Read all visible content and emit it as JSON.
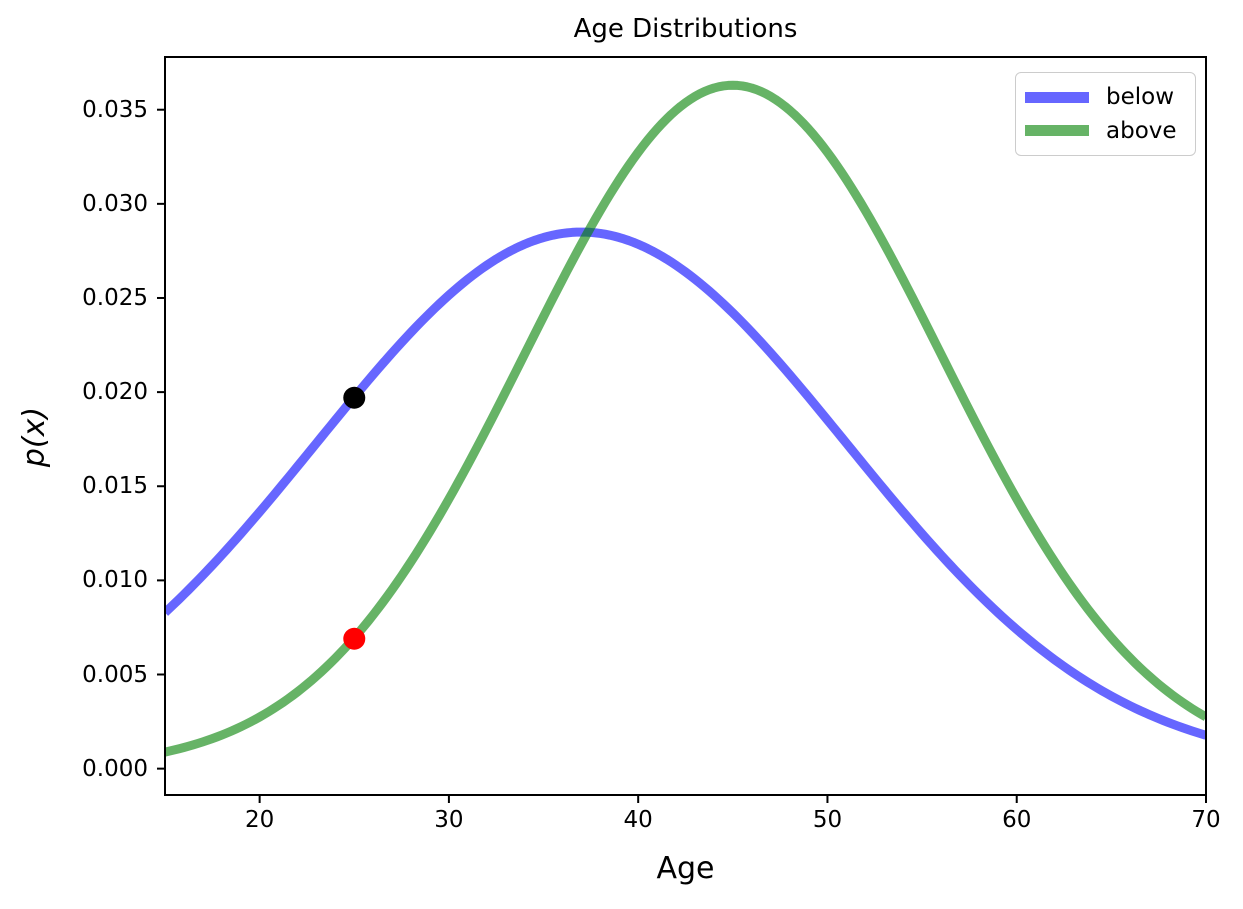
{
  "chart_data": {
    "type": "line",
    "title": "Age Distributions",
    "xlabel": "Age",
    "ylabel": "p(x)",
    "xlim": [
      15,
      70
    ],
    "ylim": [
      -0.0014,
      0.0378
    ],
    "grid": false,
    "legend_position": "upper right",
    "x_ticks": {
      "values": [
        20,
        30,
        40,
        50,
        60,
        70
      ],
      "labels": [
        "20",
        "30",
        "40",
        "50",
        "60",
        "70"
      ]
    },
    "y_ticks": {
      "values": [
        0.0,
        0.005,
        0.01,
        0.015,
        0.02,
        0.025,
        0.03,
        0.035
      ],
      "labels": [
        "0.000",
        "0.005",
        "0.010",
        "0.015",
        "0.020",
        "0.025",
        "0.030",
        "0.035"
      ]
    },
    "series": [
      {
        "name": "below",
        "shape": "gaussian",
        "mean": 37,
        "sd": 14,
        "peak": 0.0285,
        "color": "#0000ff",
        "alpha": 0.6,
        "x_range": [
          15,
          70
        ]
      },
      {
        "name": "above",
        "shape": "gaussian",
        "mean": 45,
        "sd": 11,
        "peak": 0.0363,
        "color": "#008000",
        "alpha": 0.6,
        "x_range": [
          15,
          70
        ]
      }
    ],
    "points": [
      {
        "name": "black-point",
        "x": 25,
        "y": 0.0197,
        "color": "#000000",
        "on_series": "below"
      },
      {
        "name": "red-point",
        "x": 25,
        "y": 0.0069,
        "color": "#ff0000",
        "on_series": "above"
      }
    ],
    "axis_color": "#000000",
    "legend_border_color": "#cccccc"
  }
}
